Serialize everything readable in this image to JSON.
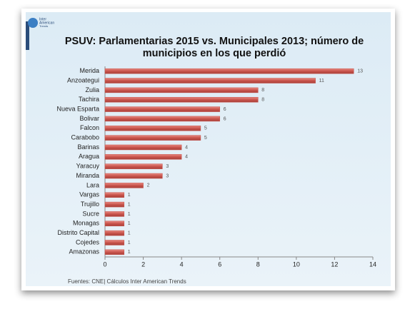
{
  "logo_text": [
    "Inter",
    "American",
    "Trends"
  ],
  "chart_data": {
    "type": "bar",
    "orientation": "horizontal",
    "title": [
      "PSUV: Parlamentarias 2015 vs. Municipales 2013; número de",
      "municipios en los que perdió"
    ],
    "categories": [
      "Merida",
      "Anzoategui",
      "Zulia",
      "Tachira",
      "Nueva Esparta",
      "Bolivar",
      "Falcon",
      "Carabobo",
      "Barinas",
      "Aragua",
      "Yaracuy",
      "Miranda",
      "Lara",
      "Vargas",
      "Trujillo",
      "Sucre",
      "Monagas",
      "Distrito Capital",
      "Cojedes",
      "Amazonas"
    ],
    "values": [
      13,
      11,
      8,
      8,
      6,
      6,
      5,
      5,
      4,
      4,
      3,
      3,
      2,
      1,
      1,
      1,
      1,
      1,
      1,
      1
    ],
    "color": "#c9544c",
    "xlim": [
      0,
      14
    ],
    "xticks": [
      0,
      2,
      4,
      6,
      8,
      10,
      12,
      14
    ],
    "source": "Fuentes: CNE| Cálculos Inter American Trends"
  }
}
